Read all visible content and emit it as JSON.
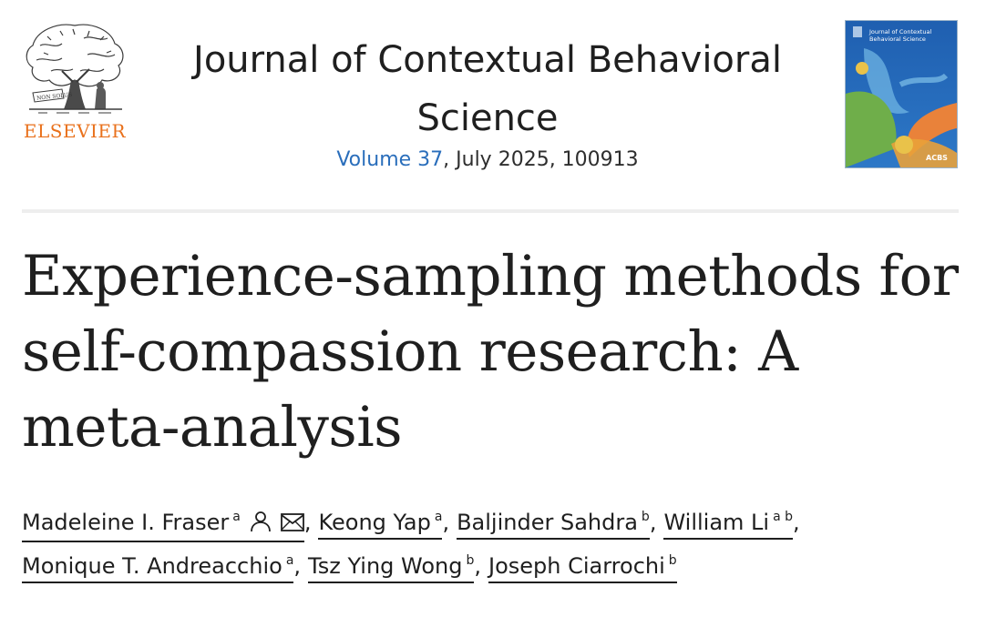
{
  "publisher": {
    "name": "ELSEVIER",
    "logo_icon": "elsevier-tree-icon",
    "logo_motto": "NON SOLUS"
  },
  "journal": {
    "title": "Journal of Contextual Behavioral Science",
    "volume_label": "Volume 37",
    "issue_rest": ", July 2025, 100913"
  },
  "cover": {
    "title": "Journal of Contextual Behavioral Science",
    "badge": "ACBS"
  },
  "article": {
    "title": "Experience-sampling methods for self-compassion research: A meta-analysis"
  },
  "authors": [
    {
      "name": "Madeleine I. Fraser",
      "aff": "a",
      "icons": [
        "person-icon",
        "envelope-icon"
      ]
    },
    {
      "name": "Keong Yap",
      "aff": "a"
    },
    {
      "name": "Baljinder Sahdra",
      "aff": "b"
    },
    {
      "name": "William Li",
      "aff": "a b"
    },
    {
      "name": "Monique T. Andreacchio",
      "aff": "a"
    },
    {
      "name": "Tsz Ying Wong",
      "aff": "b"
    },
    {
      "name": "Joseph Ciarrochi",
      "aff": "b"
    }
  ],
  "colors": {
    "publisher_orange": "#e9711c",
    "link_blue": "#2a6ebb",
    "text": "#1f1f1f"
  }
}
